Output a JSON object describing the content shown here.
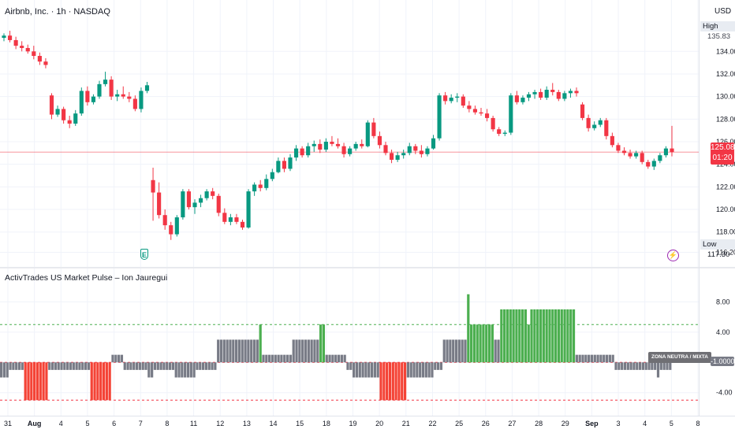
{
  "header": {
    "symbol_title": "Airbnb, Inc. · 1h · NASDAQ",
    "currency": "USD",
    "indicator_title": "ActivTrades US Market Pulse – Ion Jauregui"
  },
  "price_badges": {
    "high_label": "High",
    "high_value": "135.83",
    "low_label": "Low",
    "low_value": "117.30",
    "last_price": "125.08",
    "countdown": "01:20"
  },
  "markers": {
    "earnings_icon": "earnings-e-icon",
    "earnings_text": "E",
    "event_icon": "lightning-bolt-icon",
    "event_text": "⚡"
  },
  "indicator_badges": {
    "zone_label": "ZONA NEUTRA / MIXTA",
    "current_value": "-1.0000"
  },
  "colors": {
    "up": "#089981",
    "down": "#f23645",
    "ind_gray": "#787b86",
    "ind_green": "#4caf50",
    "ind_red": "#f44336",
    "dashed_green": "#4caf50",
    "dashed_red": "#f23645",
    "last_price_line": "#f23645"
  },
  "chart_data": [
    {
      "type": "candlestick",
      "title": "Airbnb, Inc. · 1h · NASDAQ",
      "ylabel": "USD",
      "price_ticks": [
        116.2,
        118.0,
        120.0,
        122.0,
        124.0,
        126.0,
        128.0,
        130.0,
        132.0,
        134.0
      ],
      "y_range": [
        115.4,
        136.6
      ],
      "high": 135.83,
      "low": 117.3,
      "last_price": 125.08,
      "x_tick_labels": [
        "31",
        "Aug",
        "4",
        "5",
        "6",
        "7",
        "8",
        "11",
        "12",
        "13",
        "14",
        "15",
        "18",
        "19",
        "20",
        "21",
        "22",
        "25",
        "26",
        "27",
        "28",
        "29",
        "Sep",
        "3",
        "4",
        "5",
        "8"
      ],
      "grid": true,
      "ohlc": [
        [
          135.2,
          135.6,
          134.9,
          135.4
        ],
        [
          135.4,
          135.83,
          134.8,
          135.0
        ],
        [
          135.0,
          135.3,
          134.2,
          134.5
        ],
        [
          134.5,
          134.9,
          134.0,
          134.3
        ],
        [
          134.3,
          134.6,
          133.8,
          134.0
        ],
        [
          134.0,
          134.5,
          133.3,
          133.6
        ],
        [
          133.6,
          133.9,
          132.8,
          133.1
        ],
        [
          133.1,
          133.4,
          132.5,
          132.8
        ],
        [
          130.1,
          130.3,
          128.0,
          128.4
        ],
        [
          128.4,
          129.2,
          128.2,
          128.9
        ],
        [
          128.9,
          129.1,
          127.6,
          127.9
        ],
        [
          127.9,
          128.3,
          127.2,
          127.6
        ],
        [
          127.6,
          128.8,
          127.4,
          128.5
        ],
        [
          128.5,
          130.8,
          128.3,
          130.5
        ],
        [
          130.5,
          130.9,
          129.2,
          129.5
        ],
        [
          129.5,
          130.2,
          129.3,
          130.0
        ],
        [
          130.0,
          131.4,
          129.8,
          131.1
        ],
        [
          131.1,
          132.2,
          130.9,
          131.5
        ],
        [
          131.5,
          131.8,
          129.7,
          130.0
        ],
        [
          130.0,
          130.6,
          129.6,
          130.2
        ],
        [
          130.2,
          130.9,
          129.8,
          130.0
        ],
        [
          130.0,
          130.4,
          129.5,
          129.8
        ],
        [
          129.8,
          130.1,
          128.7,
          128.9
        ],
        [
          128.9,
          130.8,
          128.6,
          130.5
        ],
        [
          130.5,
          131.3,
          130.3,
          131.0
        ],
        [
          122.6,
          123.7,
          119.0,
          121.5
        ],
        [
          121.5,
          122.4,
          119.2,
          119.5
        ],
        [
          119.5,
          120.0,
          118.2,
          118.6
        ],
        [
          118.6,
          118.9,
          117.3,
          117.8
        ],
        [
          117.8,
          119.5,
          117.6,
          119.3
        ],
        [
          119.3,
          121.8,
          119.1,
          121.6
        ],
        [
          121.6,
          121.8,
          120.0,
          120.2
        ],
        [
          120.2,
          120.9,
          119.6,
          120.6
        ],
        [
          120.6,
          121.3,
          120.2,
          121.0
        ],
        [
          121.0,
          121.8,
          120.8,
          121.6
        ],
        [
          121.6,
          121.9,
          120.9,
          121.2
        ],
        [
          121.2,
          121.4,
          119.4,
          119.7
        ],
        [
          119.7,
          120.1,
          118.7,
          118.9
        ],
        [
          118.9,
          119.6,
          118.6,
          119.3
        ],
        [
          119.3,
          119.6,
          118.7,
          118.9
        ],
        [
          118.9,
          119.1,
          118.2,
          118.4
        ],
        [
          118.4,
          121.8,
          118.3,
          121.6
        ],
        [
          121.6,
          122.4,
          121.2,
          122.2
        ],
        [
          122.2,
          122.6,
          121.6,
          121.9
        ],
        [
          121.9,
          123.1,
          121.7,
          122.7
        ],
        [
          122.7,
          123.6,
          122.5,
          123.3
        ],
        [
          123.3,
          124.6,
          123.2,
          124.3
        ],
        [
          124.3,
          124.6,
          123.3,
          123.6
        ],
        [
          123.6,
          124.9,
          123.4,
          124.6
        ],
        [
          124.6,
          125.7,
          124.3,
          125.4
        ],
        [
          125.4,
          125.6,
          124.6,
          124.8
        ],
        [
          124.8,
          125.9,
          124.6,
          125.6
        ],
        [
          125.6,
          126.1,
          125.1,
          125.8
        ],
        [
          125.8,
          126.2,
          125.0,
          125.3
        ],
        [
          125.3,
          126.3,
          125.1,
          126.0
        ],
        [
          126.0,
          126.5,
          125.6,
          125.8
        ],
        [
          125.8,
          126.3,
          125.4,
          125.6
        ],
        [
          125.6,
          125.9,
          124.6,
          124.9
        ],
        [
          124.9,
          125.6,
          124.7,
          125.4
        ],
        [
          125.4,
          126.0,
          125.2,
          125.8
        ],
        [
          125.8,
          126.2,
          125.4,
          125.6
        ],
        [
          125.6,
          127.9,
          125.5,
          127.7
        ],
        [
          127.7,
          128.1,
          126.3,
          126.5
        ],
        [
          126.5,
          126.9,
          125.4,
          125.7
        ],
        [
          125.7,
          126.0,
          124.8,
          125.0
        ],
        [
          125.0,
          125.3,
          124.1,
          124.4
        ],
        [
          124.4,
          125.1,
          124.2,
          124.8
        ],
        [
          124.8,
          125.3,
          124.5,
          125.0
        ],
        [
          125.0,
          125.9,
          124.8,
          125.6
        ],
        [
          125.6,
          125.8,
          124.9,
          125.2
        ],
        [
          125.2,
          125.7,
          124.6,
          124.9
        ],
        [
          124.9,
          125.6,
          124.7,
          125.4
        ],
        [
          125.4,
          126.6,
          125.3,
          126.3
        ],
        [
          126.3,
          130.3,
          126.1,
          130.1
        ],
        [
          130.1,
          130.4,
          129.3,
          129.6
        ],
        [
          129.6,
          130.2,
          129.4,
          129.9
        ],
        [
          129.9,
          130.3,
          129.5,
          130.0
        ],
        [
          130.0,
          130.2,
          129.0,
          129.2
        ],
        [
          129.2,
          129.6,
          128.6,
          128.9
        ],
        [
          128.9,
          129.2,
          128.4,
          128.6
        ],
        [
          128.6,
          129.0,
          128.3,
          128.5
        ],
        [
          128.5,
          128.9,
          127.8,
          128.1
        ],
        [
          128.1,
          128.3,
          126.9,
          127.1
        ],
        [
          127.1,
          127.3,
          126.5,
          126.7
        ],
        [
          126.7,
          127.0,
          126.5,
          126.8
        ],
        [
          126.8,
          130.3,
          126.6,
          130.1
        ],
        [
          130.1,
          130.5,
          129.3,
          129.5
        ],
        [
          129.5,
          130.1,
          129.3,
          129.9
        ],
        [
          129.9,
          130.4,
          129.6,
          130.2
        ],
        [
          130.2,
          130.6,
          129.8,
          130.4
        ],
        [
          130.4,
          130.7,
          129.7,
          129.9
        ],
        [
          129.9,
          130.9,
          129.7,
          130.6
        ],
        [
          130.6,
          131.2,
          130.1,
          130.4
        ],
        [
          130.4,
          130.6,
          129.6,
          129.8
        ],
        [
          129.8,
          130.5,
          129.6,
          130.3
        ],
        [
          130.3,
          130.7,
          129.9,
          130.5
        ],
        [
          130.5,
          130.8,
          130.0,
          130.3
        ],
        [
          129.3,
          129.5,
          127.9,
          128.1
        ],
        [
          128.1,
          128.4,
          126.9,
          127.2
        ],
        [
          127.2,
          127.8,
          127.0,
          127.5
        ],
        [
          127.5,
          128.1,
          127.3,
          127.9
        ],
        [
          127.9,
          128.1,
          126.2,
          126.5
        ],
        [
          126.5,
          126.8,
          125.5,
          125.7
        ],
        [
          125.7,
          125.9,
          125.0,
          125.2
        ],
        [
          125.2,
          125.5,
          124.8,
          125.0
        ],
        [
          125.0,
          125.3,
          124.5,
          124.7
        ],
        [
          124.7,
          125.2,
          124.5,
          125.0
        ],
        [
          125.0,
          125.2,
          124.0,
          124.2
        ],
        [
          124.2,
          124.4,
          123.6,
          123.8
        ],
        [
          123.8,
          124.5,
          123.5,
          124.3
        ],
        [
          124.3,
          125.0,
          124.1,
          124.8
        ],
        [
          124.8,
          125.6,
          124.6,
          125.4
        ],
        [
          125.4,
          127.4,
          124.7,
          125.08
        ]
      ]
    },
    {
      "type": "bar",
      "title": "ActivTrades US Market Pulse – Ion Jauregui",
      "y_ticks": [
        -4.0,
        0.0,
        4.0,
        8.0
      ],
      "y_range": [
        -5.8,
        9.6
      ],
      "thresholds": {
        "upper": 5.0,
        "lower": -5.0
      },
      "current_value": -1.0,
      "zone_label": "ZONA NEUTRA / MIXTA",
      "color_rule": "green when value >= 5, red when value <= -5, gray otherwise",
      "values": [
        -2,
        -2,
        -2,
        -1,
        -1,
        -1,
        -1,
        -1,
        -5,
        -5,
        -5,
        -5,
        -5,
        -5,
        -5,
        -5,
        -1,
        -1,
        -1,
        -1,
        -1,
        -1,
        -1,
        -1,
        -1,
        -1,
        -1,
        -1,
        -1,
        -1,
        -5,
        -5,
        -5,
        -5,
        -5,
        -5,
        -5,
        1,
        1,
        1,
        1,
        -1,
        -1,
        -1,
        -1,
        -1,
        -1,
        -1,
        -1,
        -2,
        -2,
        -1,
        -1,
        -1,
        -1,
        -1,
        -1,
        -1,
        -2,
        -2,
        -2,
        -2,
        -2,
        -2,
        -2,
        -1,
        -1,
        -1,
        -1,
        -1,
        -1,
        -1,
        3,
        3,
        3,
        3,
        3,
        3,
        3,
        3,
        3,
        3,
        3,
        3,
        3,
        3,
        5,
        1,
        1,
        1,
        1,
        1,
        1,
        1,
        1,
        1,
        1,
        3,
        3,
        3,
        3,
        3,
        3,
        3,
        3,
        3,
        5,
        5,
        1,
        1,
        1,
        1,
        1,
        1,
        1,
        -1,
        -1,
        -2,
        -2,
        -2,
        -2,
        -2,
        -2,
        -2,
        -2,
        -2,
        -5,
        -5,
        -5,
        -5,
        -5,
        -5,
        -5,
        -5,
        -5,
        -2,
        -2,
        -2,
        -2,
        -2,
        -2,
        -2,
        -2,
        -2,
        -1,
        -1,
        -1,
        3,
        3,
        3,
        3,
        3,
        3,
        3,
        3,
        9,
        5,
        5,
        5,
        5,
        5,
        5,
        5,
        5,
        3,
        3,
        7,
        7,
        7,
        7,
        7,
        7,
        7,
        7,
        7,
        5,
        7,
        7,
        7,
        7,
        7,
        7,
        7,
        7,
        7,
        7,
        7,
        7,
        7,
        7,
        7,
        1,
        1,
        1,
        1,
        1,
        1,
        1,
        1,
        1,
        1,
        1,
        1,
        1,
        -1,
        -1,
        -1,
        -1,
        -1,
        -1,
        -1,
        -1,
        -1,
        -1,
        -1,
        -1,
        -1,
        -1,
        -2,
        -1,
        -1,
        -1,
        -1
      ]
    }
  ]
}
